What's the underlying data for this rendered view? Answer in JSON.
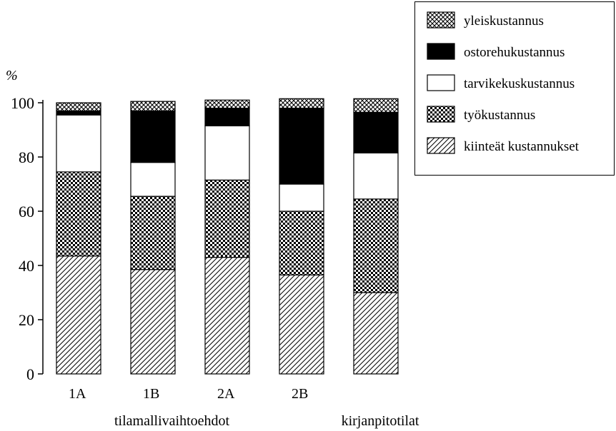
{
  "chart_data": {
    "type": "bar",
    "stacked": true,
    "ylabel": "%",
    "ylim": [
      0,
      100
    ],
    "yticks": [
      0,
      20,
      40,
      60,
      80,
      100
    ],
    "grid": false,
    "legend_position": "top-right",
    "categories": [
      "1A",
      "1B",
      "2A",
      "2B",
      "kirjanpitotilat"
    ],
    "xlabel": "tilamallivaihtoehdot",
    "series": [
      {
        "name": "kiinteät kustannukset",
        "pattern": "diagonal-hatch",
        "color": "#000000",
        "values": [
          43.5,
          38.5,
          43,
          36.5,
          30
        ]
      },
      {
        "name": "työkustannus",
        "pattern": "checker",
        "color": "#000000",
        "values": [
          31,
          27,
          28.5,
          23.5,
          34.5
        ]
      },
      {
        "name": "tarvikekuskustannus",
        "pattern": "none",
        "color": "#ffffff",
        "values": [
          21,
          12.5,
          20,
          10,
          17
        ]
      },
      {
        "name": "ostorehukustannus",
        "pattern": "solid",
        "color": "#000000",
        "values": [
          1.5,
          19,
          6.5,
          28,
          15
        ]
      },
      {
        "name": "yleiskustannus",
        "pattern": "crosshatch",
        "color": "#000000",
        "values": [
          3,
          3.5,
          3,
          3.5,
          5
        ]
      }
    ],
    "legend_order": [
      "yleiskustannus",
      "ostorehukustannus",
      "tarvikekuskustannus",
      "työkustannus",
      "kiinteät kustannukset"
    ]
  }
}
